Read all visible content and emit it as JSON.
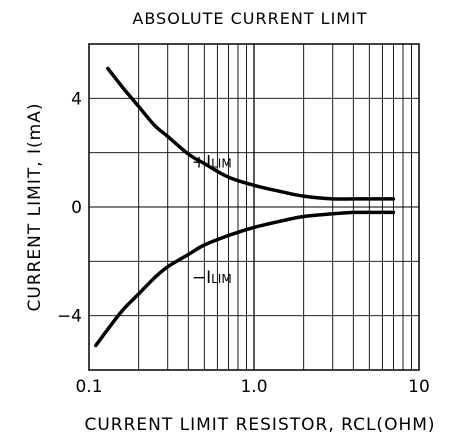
{
  "chart_data": {
    "type": "line",
    "title": "ABSOLUTE CURRENT LIMIT",
    "xlabel": "CURRENT LIMIT RESISTOR, RCL(OHM)",
    "ylabel": "CURRENT LIMIT, I(mA)",
    "x_scale": "log",
    "xlim": [
      0.1,
      10
    ],
    "ylim": [
      -6,
      6
    ],
    "x_ticks": [
      {
        "value": 0.1,
        "label": "0.1"
      },
      {
        "value": 1,
        "label": "1.0"
      },
      {
        "value": 10,
        "label": "10"
      }
    ],
    "y_ticks": [
      {
        "value": 4,
        "label": "4"
      },
      {
        "value": 0,
        "label": "0"
      },
      {
        "value": -4,
        "label": "−4"
      }
    ],
    "grid": true,
    "series": [
      {
        "name": "+I_LIM",
        "label_main": "+I",
        "label_sub": "LIM",
        "x": [
          0.13,
          0.16,
          0.2,
          0.25,
          0.3,
          0.4,
          0.5,
          0.7,
          1.0,
          1.5,
          2.0,
          3.0,
          4.0,
          5.0,
          7.0
        ],
        "y": [
          5.1,
          4.4,
          3.7,
          3.0,
          2.6,
          1.95,
          1.6,
          1.1,
          0.8,
          0.55,
          0.4,
          0.3,
          0.3,
          0.3,
          0.3
        ]
      },
      {
        "name": "-I_LIM",
        "label_main": "−I",
        "label_sub": "LIM",
        "x": [
          0.11,
          0.13,
          0.16,
          0.2,
          0.25,
          0.3,
          0.4,
          0.5,
          0.7,
          1.0,
          1.5,
          2.0,
          3.0,
          4.0,
          5.0,
          7.0
        ],
        "y": [
          -5.1,
          -4.5,
          -3.8,
          -3.2,
          -2.6,
          -2.2,
          -1.75,
          -1.4,
          -1.05,
          -0.75,
          -0.5,
          -0.35,
          -0.25,
          -0.2,
          -0.2,
          -0.2
        ]
      }
    ]
  }
}
